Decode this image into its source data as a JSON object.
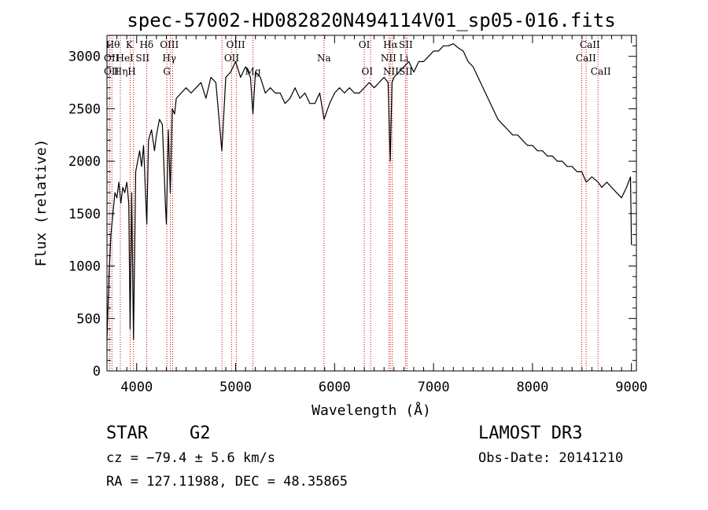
{
  "chart_data": {
    "type": "line",
    "title": "spec-57002-HD082820N494114V01_sp05-016.fits",
    "xlabel": "Wavelength (Å)",
    "ylabel": "Flux (relative)",
    "xlim": [
      3700,
      9050
    ],
    "ylim": [
      0,
      3200
    ],
    "xticks": [
      4000,
      5000,
      6000,
      7000,
      8000,
      9000
    ],
    "yticks": [
      0,
      500,
      1000,
      1500,
      2000,
      2500,
      3000
    ],
    "series": [
      {
        "name": "flux",
        "x": [
          3700,
          3720,
          3740,
          3760,
          3780,
          3800,
          3820,
          3840,
          3860,
          3880,
          3900,
          3920,
          3934,
          3950,
          3968,
          3990,
          4010,
          4030,
          4050,
          4070,
          4102,
          4120,
          4150,
          4180,
          4200,
          4230,
          4260,
          4290,
          4300,
          4320,
          4340,
          4360,
          4383,
          4400,
          4450,
          4500,
          4550,
          4600,
          4650,
          4700,
          4750,
          4800,
          4861,
          4900,
          4950,
          5000,
          5050,
          5100,
          5150,
          5175,
          5200,
          5250,
          5300,
          5350,
          5400,
          5450,
          5500,
          5550,
          5600,
          5650,
          5700,
          5750,
          5800,
          5850,
          5893,
          5950,
          6000,
          6050,
          6100,
          6150,
          6200,
          6250,
          6300,
          6350,
          6400,
          6450,
          6500,
          6540,
          6563,
          6580,
          6600,
          6650,
          6700,
          6750,
          6800,
          6850,
          6900,
          6950,
          7000,
          7050,
          7100,
          7150,
          7200,
          7250,
          7300,
          7350,
          7400,
          7450,
          7500,
          7550,
          7600,
          7650,
          7700,
          7750,
          7800,
          7850,
          7900,
          7950,
          8000,
          8050,
          8100,
          8150,
          8200,
          8250,
          8300,
          8350,
          8400,
          8450,
          8498,
          8542,
          8600,
          8662,
          8700,
          8750,
          8800,
          8850,
          8900,
          8950,
          8990,
          9000
        ],
        "y": [
          300,
          900,
          1300,
          1500,
          1700,
          1650,
          1800,
          1600,
          1750,
          1700,
          1800,
          1600,
          400,
          1700,
          300,
          1900,
          2000,
          2100,
          1950,
          2150,
          1400,
          2200,
          2300,
          2100,
          2250,
          2400,
          2350,
          1600,
          1400,
          2300,
          1700,
          2500,
          2450,
          2600,
          2650,
          2700,
          2650,
          2700,
          2750,
          2600,
          2800,
          2750,
          2100,
          2800,
          2850,
          2950,
          2800,
          2900,
          2800,
          2450,
          2850,
          2800,
          2650,
          2700,
          2650,
          2650,
          2550,
          2600,
          2700,
          2600,
          2650,
          2550,
          2550,
          2650,
          2400,
          2550,
          2650,
          2700,
          2650,
          2700,
          2650,
          2650,
          2700,
          2750,
          2700,
          2750,
          2800,
          2750,
          2000,
          2750,
          2800,
          2850,
          2900,
          2950,
          2850,
          2950,
          2950,
          3000,
          3050,
          3050,
          3100,
          3100,
          3120,
          3080,
          3050,
          2950,
          2900,
          2800,
          2700,
          2600,
          2500,
          2400,
          2350,
          2300,
          2250,
          2250,
          2200,
          2150,
          2150,
          2100,
          2100,
          2050,
          2050,
          2000,
          2000,
          1950,
          1950,
          1900,
          1900,
          1800,
          1850,
          1800,
          1750,
          1800,
          1750,
          1700,
          1650,
          1750,
          1850,
          1200
        ]
      }
    ],
    "lines": [
      {
        "name": "OII",
        "wave": 3727
      },
      {
        "name": "Hθ",
        "wave": 3750
      },
      {
        "name": "Hη",
        "wave": 3835
      },
      {
        "name": "K",
        "wave": 3934
      },
      {
        "name": "H",
        "wave": 3968
      },
      {
        "name": "Hδ",
        "wave": 4102
      },
      {
        "name": "G",
        "wave": 4305
      },
      {
        "name": "Hγ",
        "wave": 4340
      },
      {
        "name": "OIII",
        "wave": 4363
      },
      {
        "name": "Hβ",
        "wave": 4861
      },
      {
        "name": "OIII",
        "wave": 4959
      },
      {
        "name": "OIII",
        "wave": 5007
      },
      {
        "name": "Mg",
        "wave": 5175
      },
      {
        "name": "Na",
        "wave": 5893
      },
      {
        "name": "OI",
        "wave": 6300
      },
      {
        "name": "OI",
        "wave": 6364
      },
      {
        "name": "NII",
        "wave": 6548
      },
      {
        "name": "Hα",
        "wave": 6563
      },
      {
        "name": "NII",
        "wave": 6583
      },
      {
        "name": "SII",
        "wave": 6716
      },
      {
        "name": "SII",
        "wave": 6731
      },
      {
        "name": "CaII",
        "wave": 8498
      },
      {
        "name": "CaII",
        "wave": 8542
      },
      {
        "name": "CaII",
        "wave": 8662
      }
    ],
    "line_labels": [
      {
        "text": "Hθ",
        "row": 0,
        "wave": 3760
      },
      {
        "text": "K",
        "row": 0,
        "wave": 3925
      },
      {
        "text": "Hδ",
        "row": 0,
        "wave": 4100
      },
      {
        "text": "OIII",
        "row": 0,
        "wave": 4330
      },
      {
        "text": "OIII",
        "row": 0,
        "wave": 5000
      },
      {
        "text": "OI",
        "row": 0,
        "wave": 6300
      },
      {
        "text": "Hα",
        "row": 0,
        "wave": 6565
      },
      {
        "text": "SII",
        "row": 0,
        "wave": 6720
      },
      {
        "text": "CaII",
        "row": 0,
        "wave": 8580
      },
      {
        "text": "OII",
        "row": 1,
        "wave": 3745
      },
      {
        "text": "HeI",
        "row": 1,
        "wave": 3880
      },
      {
        "text": "SII",
        "row": 1,
        "wave": 4060
      },
      {
        "text": "Hγ",
        "row": 1,
        "wave": 4330
      },
      {
        "text": "OII",
        "row": 1,
        "wave": 4960
      },
      {
        "text": "Na",
        "row": 1,
        "wave": 5893
      },
      {
        "text": "NII",
        "row": 1,
        "wave": 6545
      },
      {
        "text": "Li",
        "row": 1,
        "wave": 6700
      },
      {
        "text": "CaII",
        "row": 1,
        "wave": 8540
      },
      {
        "text": "OII",
        "row": 2,
        "wave": 3745
      },
      {
        "text": "Hη",
        "row": 2,
        "wave": 3840
      },
      {
        "text": "H",
        "row": 2,
        "wave": 3950
      },
      {
        "text": "G",
        "row": 2,
        "wave": 4305
      },
      {
        "text": "Mg",
        "row": 2,
        "wave": 5175
      },
      {
        "text": "OI",
        "row": 2,
        "wave": 6330
      },
      {
        "text": "NII",
        "row": 2,
        "wave": 6570
      },
      {
        "text": "SII",
        "row": 2,
        "wave": 6720
      },
      {
        "text": "CaII",
        "row": 2,
        "wave": 8690
      }
    ],
    "colors": {
      "line": "#000000",
      "marker": "#cc0000",
      "axes": "#000000"
    }
  },
  "info": {
    "object_class": "STAR",
    "subclass": "G2",
    "survey": "LAMOST DR3",
    "cz": "cz = −79.4 ± 5.6 km/s",
    "obs_date": "Obs-Date: 20141210",
    "radec": "RA = 127.11988, DEC =  48.35865"
  }
}
